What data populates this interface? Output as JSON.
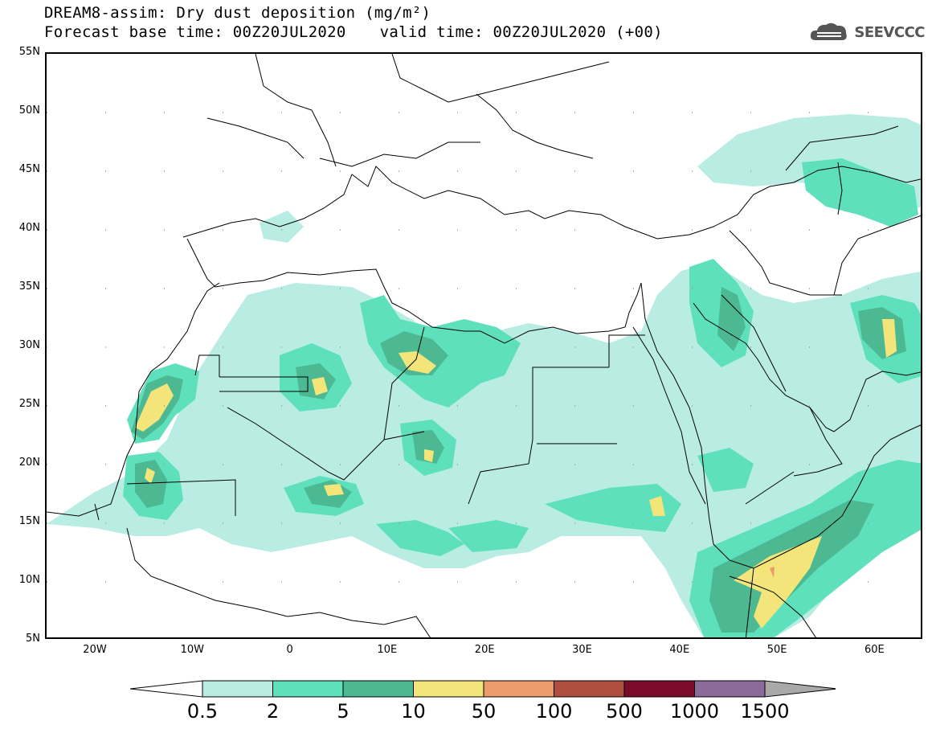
{
  "title": {
    "line1": "DREAM8-assim: Dry dust deposition (mg/m²)",
    "base_time": "Forecast base time: 00Z20JUL2020",
    "valid_time": "valid time: 00Z20JUL2020 (+00)"
  },
  "logo": {
    "text": "SEEVCCC",
    "icon": "cloud-logo-icon",
    "color": "#555555"
  },
  "map": {
    "lat_labels": [
      "55N",
      "50N",
      "45N",
      "40N",
      "35N",
      "30N",
      "25N",
      "20N",
      "15N",
      "10N",
      "5N"
    ],
    "lon_labels": [
      "20W",
      "10W",
      "0",
      "10E",
      "20E",
      "30E",
      "40E",
      "50E",
      "60E"
    ],
    "extent": {
      "lon_min": -25,
      "lon_max": 65,
      "lat_min": 5,
      "lat_max": 55
    }
  },
  "colorbar": {
    "labels": [
      "0.5",
      "2",
      "5",
      "10",
      "50",
      "100",
      "500",
      "1000",
      "1500"
    ],
    "colors": [
      "#ffffff",
      "#b9ede4",
      "#5ee0bd",
      "#4cb993",
      "#f3e57a",
      "#ec9b6b",
      "#ae4e3f",
      "#7a0b29",
      "#8c6a9a",
      "#a9a9a9"
    ]
  }
}
